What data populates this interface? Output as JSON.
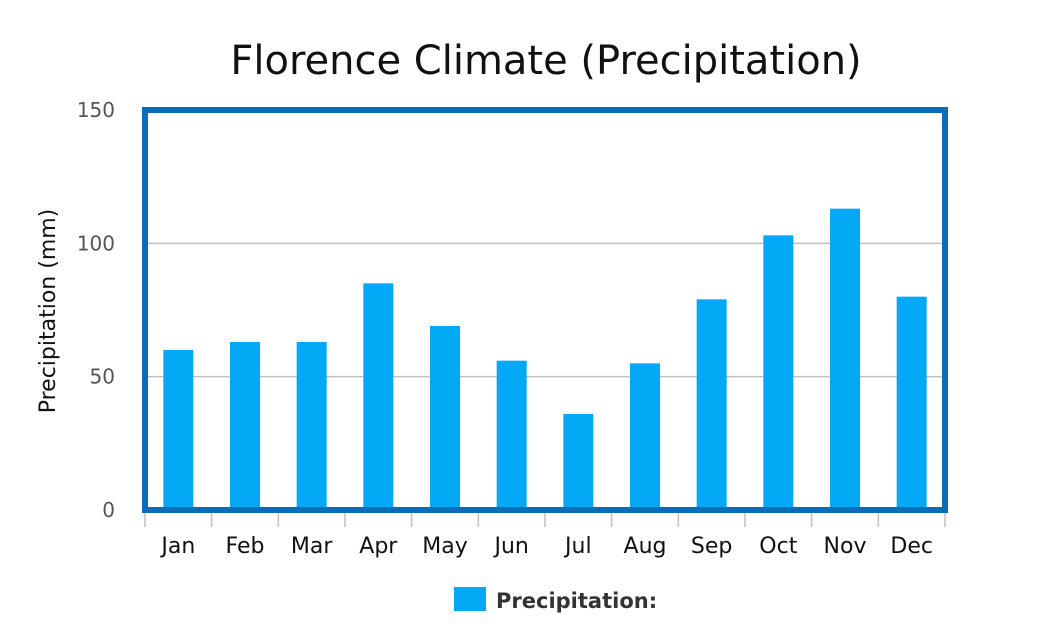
{
  "chart_data": {
    "type": "bar",
    "title": "Florence Climate (Precipitation)",
    "xlabel": "",
    "ylabel": "Precipitation (mm)",
    "ylim": [
      0,
      150
    ],
    "yticks": [
      0,
      50,
      100,
      150
    ],
    "grid": true,
    "legend_position": "bottom",
    "categories": [
      "Jan",
      "Feb",
      "Mar",
      "Apr",
      "May",
      "Jun",
      "Jul",
      "Aug",
      "Sep",
      "Oct",
      "Nov",
      "Dec"
    ],
    "series": [
      {
        "name": "Precipitation:",
        "color": "#03a9f4",
        "values": [
          60,
          63,
          63,
          85,
          69,
          56,
          36,
          55,
          79,
          103,
          113,
          80
        ]
      }
    ]
  },
  "colors": {
    "frame": "#0a6db8",
    "grid": "#c0c0c0",
    "bar": "#03a9f4"
  }
}
